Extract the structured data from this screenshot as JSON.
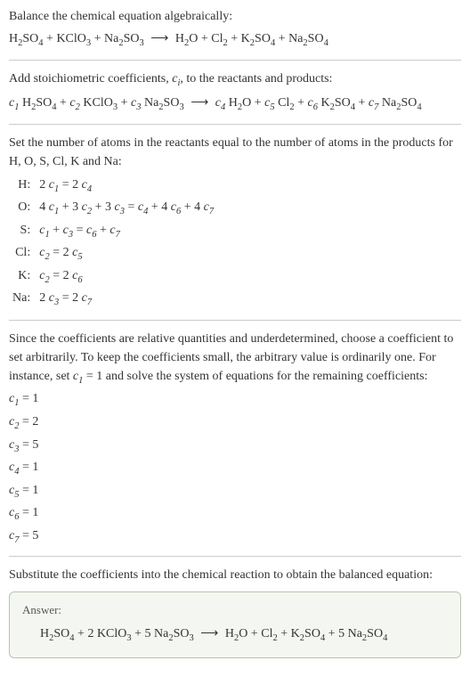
{
  "intro": {
    "line1": "Balance the chemical equation algebraically:"
  },
  "reaction": {
    "r1": "H",
    "r1s1": "2",
    "r1b": "SO",
    "r1s2": "4",
    "r2": "KClO",
    "r2s": "3",
    "r3": "Na",
    "r3s1": "2",
    "r3b": "SO",
    "r3s2": "3",
    "arrow": "⟶",
    "p1": "H",
    "p1s": "2",
    "p1b": "O",
    "p2": "Cl",
    "p2s": "2",
    "p3": "K",
    "p3s1": "2",
    "p3b": "SO",
    "p3s2": "4",
    "p4": "Na",
    "p4s1": "2",
    "p4b": "SO",
    "p4s2": "4"
  },
  "stoich": {
    "text_a": "Add stoichiometric coefficients, ",
    "ci": "c",
    "ci_sub": "i",
    "text_b": ", to the reactants and products:"
  },
  "coefs": {
    "c1": "c",
    "c1s": "1",
    "c2": "c",
    "c2s": "2",
    "c3": "c",
    "c3s": "3",
    "c4": "c",
    "c4s": "4",
    "c5": "c",
    "c5s": "5",
    "c6": "c",
    "c6s": "6",
    "c7": "c",
    "c7s": "7"
  },
  "atoms_intro": "Set the number of atoms in the reactants equal to the number of atoms in the products for H, O, S, Cl, K and Na:",
  "atoms": {
    "rows": [
      {
        "el": "H:",
        "eq_a": "2 ",
        "eq_b": " = 2 "
      },
      {
        "el": "O:",
        "eq_a": "4 ",
        "eq_b": " + 3 ",
        "eq_c": " + 3 ",
        "eq_d": " = ",
        "eq_e": " + 4 ",
        "eq_f": " + 4 "
      },
      {
        "el": "S:",
        "eq_b": " + ",
        "eq_d": " = ",
        "eq_e": " + "
      },
      {
        "el": "Cl:",
        "eq_d": " = 2 "
      },
      {
        "el": "K:",
        "eq_d": " = 2 "
      },
      {
        "el": "Na:",
        "eq_a": "2 ",
        "eq_d": " = 2 "
      }
    ]
  },
  "under": {
    "text_a": "Since the coefficients are relative quantities and underdetermined, choose a coefficient to set arbitrarily. To keep the coefficients small, the arbitrary value is ordinarily one. For instance, set ",
    "text_b": " = 1 and solve the system of equations for the remaining coefficients:"
  },
  "solutions": [
    {
      "c": "c",
      "s": "1",
      "v": " = 1"
    },
    {
      "c": "c",
      "s": "2",
      "v": " = 2"
    },
    {
      "c": "c",
      "s": "3",
      "v": " = 5"
    },
    {
      "c": "c",
      "s": "4",
      "v": " = 1"
    },
    {
      "c": "c",
      "s": "5",
      "v": " = 1"
    },
    {
      "c": "c",
      "s": "6",
      "v": " = 1"
    },
    {
      "c": "c",
      "s": "7",
      "v": " = 5"
    }
  ],
  "subst": "Substitute the coefficients into the chemical reaction to obtain the balanced equation:",
  "answer": {
    "label": "Answer:",
    "coef2": "2 ",
    "coef5a": "5 ",
    "coef5b": "5 "
  }
}
